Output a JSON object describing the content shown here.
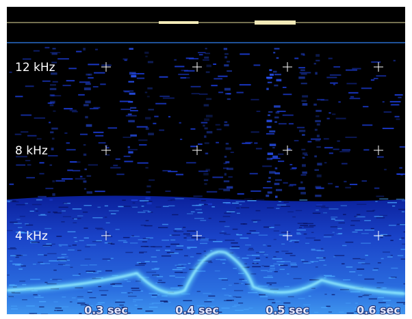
{
  "frequency_labels": [
    "12 kHz",
    "8 kHz",
    "4 kHz"
  ],
  "time_labels": [
    "0.3 sec",
    "0.4 sec",
    "0.5 sec",
    "0.6 sec"
  ]
}
